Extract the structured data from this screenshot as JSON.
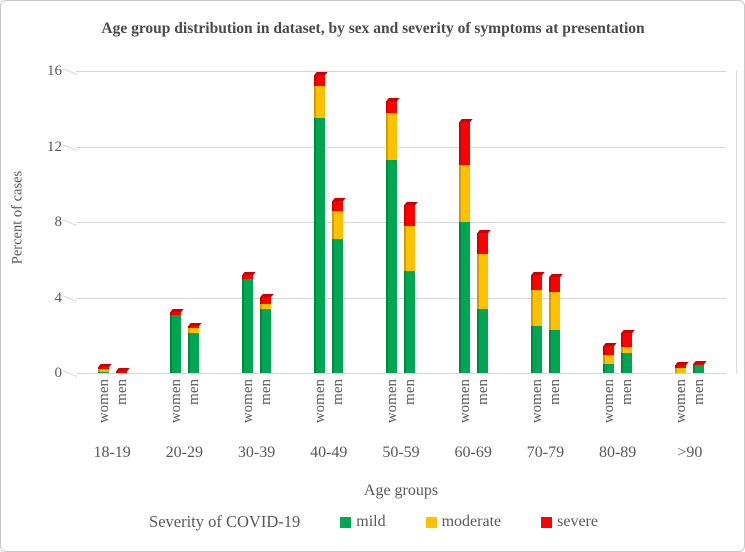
{
  "chart_data": {
    "type": "bar",
    "stacked": true,
    "title": "Age group distribution in dataset, by sex and severity of symptoms at presentation",
    "xlabel": "Age groups",
    "ylabel": "Percent of cases",
    "ylim": [
      0,
      16
    ],
    "yticks": [
      0,
      4,
      8,
      12,
      16
    ],
    "grid": true,
    "legend_position": "bottom",
    "legend_title": "Severity of COVID-19",
    "categories": [
      "18-19",
      "20-29",
      "30-39",
      "40-49",
      "50-59",
      "60-69",
      "70-79",
      "80-89",
      ">90"
    ],
    "bar_pair_labels": [
      "women",
      "men"
    ],
    "series": [
      {
        "name": "mild",
        "color": "#00A651",
        "values_women": [
          0.05,
          3.1,
          5.0,
          13.5,
          11.3,
          8.0,
          2.5,
          0.5,
          0.0
        ],
        "values_men": [
          0.0,
          2.1,
          3.4,
          7.1,
          5.4,
          3.4,
          2.3,
          1.05,
          0.4
        ]
      },
      {
        "name": "moderate",
        "color": "#FFC000",
        "values_women": [
          0.15,
          0.0,
          0.0,
          1.7,
          2.5,
          3.0,
          1.9,
          0.45,
          0.25
        ],
        "values_men": [
          0.0,
          0.3,
          0.25,
          1.5,
          2.4,
          2.9,
          2.0,
          0.35,
          0.0
        ]
      },
      {
        "name": "severe",
        "color": "#FF0000",
        "values_women": [
          0.1,
          0.15,
          0.2,
          0.6,
          0.6,
          2.3,
          0.8,
          0.5,
          0.2
        ],
        "values_men": [
          0.1,
          0.1,
          0.4,
          0.5,
          1.1,
          1.1,
          0.8,
          0.7,
          0.1
        ]
      }
    ]
  }
}
